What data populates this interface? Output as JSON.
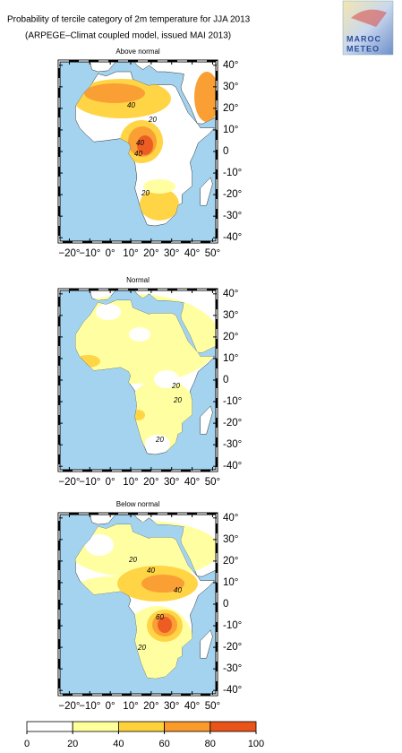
{
  "header": {
    "title": "Probability of tercile category of 2m temperature for JJA 2013",
    "subtitle": "(ARPEGE–Climat coupled model, issued MAI 2013)"
  },
  "logo": {
    "line1": "MAROC",
    "line2": "METEO"
  },
  "lonlim": [
    -25,
    52
  ],
  "latlim": [
    -42,
    42
  ],
  "lon_ticks": [
    {
      "value": -20,
      "label": "−20°"
    },
    {
      "value": -10,
      "label": "−10°"
    },
    {
      "value": 0,
      "label": "0°"
    },
    {
      "value": 10,
      "label": "10°"
    },
    {
      "value": 20,
      "label": "20°"
    },
    {
      "value": 30,
      "label": "30°"
    },
    {
      "value": 40,
      "label": "40°"
    },
    {
      "value": 50,
      "label": "50°"
    }
  ],
  "lat_ticks": [
    {
      "value": 40,
      "label": "40°"
    },
    {
      "value": 30,
      "label": "30°"
    },
    {
      "value": 20,
      "label": "20°"
    },
    {
      "value": 10,
      "label": "10°"
    },
    {
      "value": 0,
      "label": "0"
    },
    {
      "value": -10,
      "label": "-10°"
    },
    {
      "value": -20,
      "label": "-20°"
    },
    {
      "value": -30,
      "label": "-30°"
    },
    {
      "value": -40,
      "label": "-40°"
    }
  ],
  "panels": [
    {
      "title": "Above normal",
      "contour_labels": [
        "40",
        "20",
        "40",
        "40",
        "20"
      ]
    },
    {
      "title": "Normal",
      "contour_labels": [
        "20",
        "20",
        "20"
      ]
    },
    {
      "title": "Below normal",
      "contour_labels": [
        "20",
        "40",
        "40",
        "60",
        "20"
      ]
    }
  ],
  "colorbar": {
    "ticks": [
      0,
      20,
      40,
      60,
      80,
      100
    ],
    "colors": [
      "#ffffff",
      "#ffff9c",
      "#ffd23c",
      "#f99a2a",
      "#eb5418"
    ]
  }
}
